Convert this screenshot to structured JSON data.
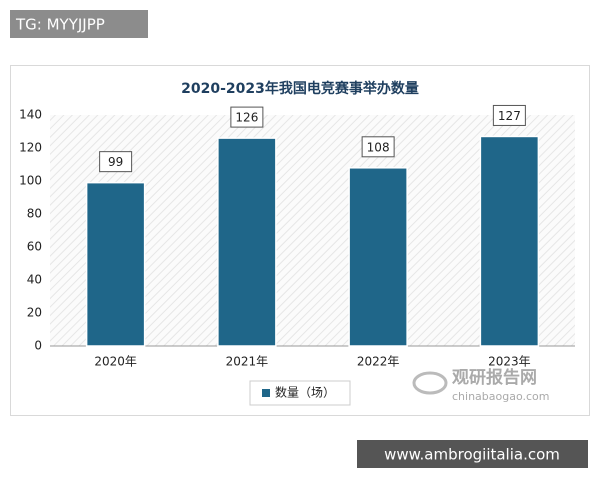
{
  "chart_data": {
    "type": "bar",
    "title": "2020-2023年我国电竞赛事举办数量",
    "categories": [
      "2020年",
      "2021年",
      "2022年",
      "2023年"
    ],
    "series": [
      {
        "name": "数量（场）",
        "color": "#1f6689",
        "values": [
          99,
          126,
          108,
          127
        ]
      }
    ],
    "ylim": [
      0,
      140
    ],
    "yticks": [
      0,
      20,
      40,
      60,
      80,
      100,
      120,
      140
    ],
    "grid": false
  },
  "top_tag": "TG: MYYJJPP",
  "bottom_tag": "www.ambrogiitalia.com",
  "logo": {
    "name": "观研报告网",
    "site": "chinabaogao.com"
  }
}
